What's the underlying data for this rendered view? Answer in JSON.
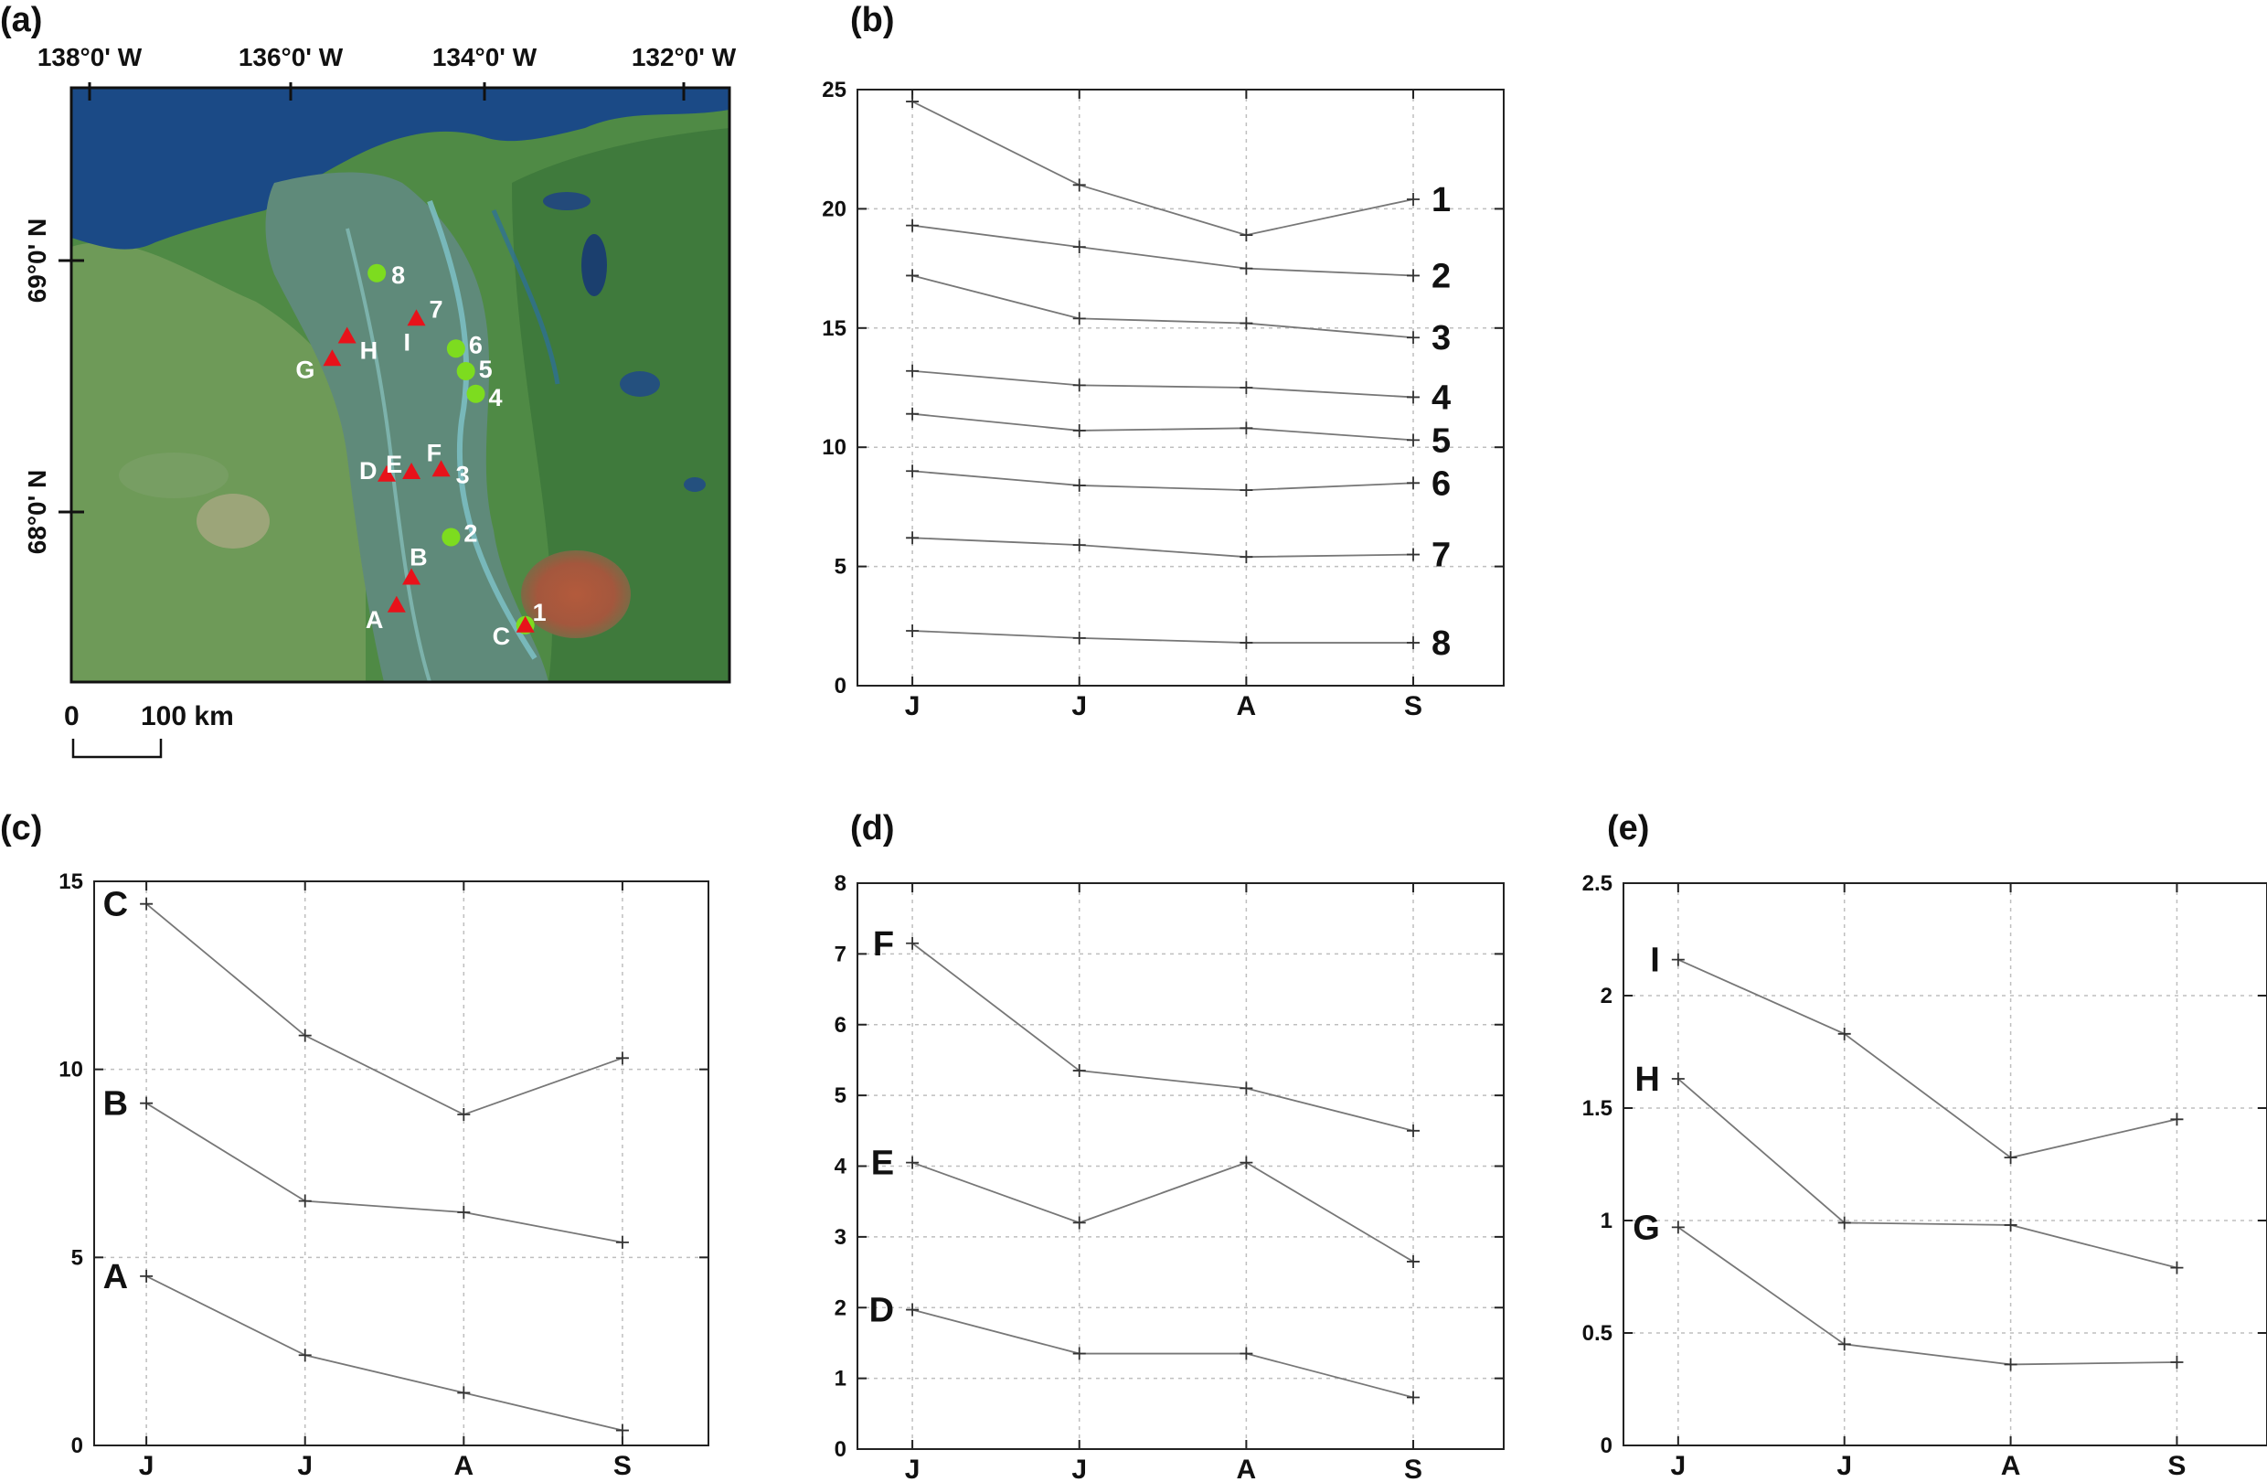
{
  "map": {
    "panel_label": "(a)",
    "lon_labels": [
      "138°0' W",
      "136°0' W",
      "134°0' W",
      "132°0' W"
    ],
    "lat_labels": [
      "69°0' N",
      "68°0' N"
    ],
    "scale_labels": [
      "0",
      "100 km"
    ],
    "colors": {
      "sea": "#1b4a86",
      "land": "#4f8a45",
      "delta": "#5f8a7a",
      "burn": "#a8553a",
      "circle": "#7ddc1f",
      "triangle": "#e8121a"
    },
    "sites_circle": [
      {
        "label": "8",
        "lon": -135.1,
        "lat": 68.95
      },
      {
        "label": "6",
        "lon": -134.3,
        "lat": 68.65
      },
      {
        "label": "5",
        "lon": -134.2,
        "lat": 68.56
      },
      {
        "label": "4",
        "lon": -134.1,
        "lat": 68.47
      },
      {
        "label": "2",
        "lon": -134.35,
        "lat": 67.9
      },
      {
        "label": "1",
        "lon": -133.6,
        "lat": 67.55
      }
    ],
    "sites_triangle": [
      {
        "label": "7",
        "lon": -134.7,
        "lat": 68.77
      },
      {
        "label": "I",
        "lon": -134.7,
        "lat": 68.77
      },
      {
        "label": "H",
        "lon": -135.4,
        "lat": 68.7
      },
      {
        "label": "G",
        "lon": -135.55,
        "lat": 68.61
      },
      {
        "label": "D",
        "lon": -135.0,
        "lat": 68.15
      },
      {
        "label": "E",
        "lon": -134.75,
        "lat": 68.16
      },
      {
        "label": "F",
        "lon": -134.45,
        "lat": 68.17
      },
      {
        "label": "3",
        "lon": -134.45,
        "lat": 68.17
      },
      {
        "label": "B",
        "lon": -134.75,
        "lat": 67.74
      },
      {
        "label": "A",
        "lon": -134.9,
        "lat": 67.63
      },
      {
        "label": "C",
        "lon": -133.6,
        "lat": 67.55
      }
    ]
  },
  "chart_data": [
    {
      "panel": "(b)",
      "type": "line",
      "categories": [
        "J",
        "J",
        "A",
        "S"
      ],
      "ylim": [
        0,
        25
      ],
      "yticks": [
        0,
        5,
        10,
        15,
        20,
        25
      ],
      "grid": true,
      "series": [
        {
          "name": "1",
          "values": [
            24.5,
            21.0,
            18.9,
            20.4
          ]
        },
        {
          "name": "2",
          "values": [
            19.3,
            18.4,
            17.5,
            17.2
          ]
        },
        {
          "name": "3",
          "values": [
            17.2,
            15.4,
            15.2,
            14.6
          ]
        },
        {
          "name": "4",
          "values": [
            13.2,
            12.6,
            12.5,
            12.1
          ]
        },
        {
          "name": "5",
          "values": [
            11.4,
            10.7,
            10.8,
            10.3
          ]
        },
        {
          "name": "6",
          "values": [
            9.0,
            8.4,
            8.2,
            8.5
          ]
        },
        {
          "name": "7",
          "values": [
            6.2,
            5.9,
            5.4,
            5.5
          ]
        },
        {
          "name": "8",
          "values": [
            2.3,
            2.0,
            1.8,
            1.8
          ]
        }
      ]
    },
    {
      "panel": "(c)",
      "type": "line",
      "categories": [
        "J",
        "J",
        "A",
        "S"
      ],
      "ylim": [
        0,
        15
      ],
      "yticks": [
        0,
        5,
        10,
        15
      ],
      "grid": true,
      "series": [
        {
          "name": "C",
          "values": [
            14.4,
            10.9,
            8.8,
            10.3
          ]
        },
        {
          "name": "B",
          "values": [
            9.1,
            6.5,
            6.2,
            5.4
          ]
        },
        {
          "name": "A",
          "values": [
            4.5,
            2.4,
            1.4,
            0.4
          ]
        }
      ]
    },
    {
      "panel": "(d)",
      "type": "line",
      "categories": [
        "J",
        "J",
        "A",
        "S"
      ],
      "ylim": [
        0,
        8
      ],
      "yticks": [
        0,
        1,
        2,
        3,
        4,
        5,
        6,
        7,
        8
      ],
      "grid": true,
      "series": [
        {
          "name": "F",
          "values": [
            7.15,
            5.35,
            5.1,
            4.5
          ]
        },
        {
          "name": "E",
          "values": [
            4.05,
            3.2,
            4.05,
            2.65
          ]
        },
        {
          "name": "D",
          "values": [
            1.97,
            1.35,
            1.35,
            0.73
          ]
        }
      ]
    },
    {
      "panel": "(e)",
      "type": "line",
      "categories": [
        "J",
        "J",
        "A",
        "S"
      ],
      "ylim": [
        0,
        2.5
      ],
      "yticks": [
        0,
        0.5,
        1,
        1.5,
        2,
        2.5
      ],
      "grid": true,
      "series": [
        {
          "name": "I",
          "values": [
            2.16,
            1.83,
            1.28,
            1.45
          ]
        },
        {
          "name": "H",
          "values": [
            1.63,
            0.99,
            0.98,
            0.79
          ]
        },
        {
          "name": "G",
          "values": [
            0.97,
            0.45,
            0.36,
            0.37
          ]
        }
      ]
    }
  ]
}
